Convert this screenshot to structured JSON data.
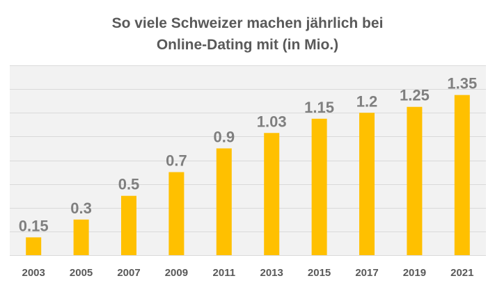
{
  "chart_data": {
    "type": "bar",
    "title_lines": [
      "So viele Schweizer machen jährlich bei",
      "Online-Dating mit (in Mio.)"
    ],
    "categories": [
      "2003",
      "2005",
      "2007",
      "2009",
      "2011",
      "2013",
      "2015",
      "2017",
      "2019",
      "2021"
    ],
    "values": [
      0.15,
      0.3,
      0.5,
      0.7,
      0.9,
      1.03,
      1.15,
      1.2,
      1.25,
      1.35
    ],
    "data_labels": [
      "0.15",
      "0.3",
      "0.5",
      "0.7",
      "0.9",
      "1.03",
      "1.15",
      "1.2",
      "1.25",
      "1.35"
    ],
    "ylim": [
      0,
      1.6
    ],
    "y_grid_step": 0.2,
    "grid": true,
    "y_tick_labels_shown": false,
    "xlabel": "",
    "ylabel": "",
    "colors": {
      "bar": "#FFC000",
      "text": "#595959",
      "label": "#7F7F7F",
      "grid": "#D9D9D9",
      "plot_background": "#F2F2F2"
    }
  }
}
